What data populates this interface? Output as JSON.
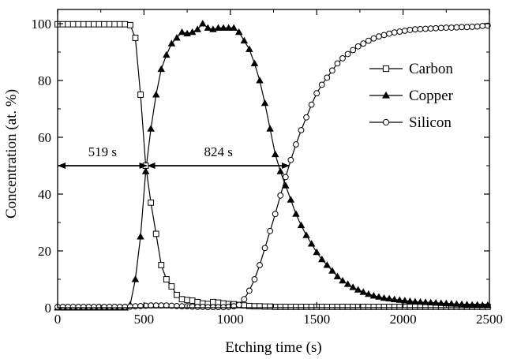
{
  "chart_data": {
    "type": "line",
    "title": "",
    "xlabel": "Etching time (s)",
    "ylabel": "Concentration (at. %)",
    "xlim": [
      0,
      2500
    ],
    "ylim": [
      0,
      105
    ],
    "xticks": [
      0,
      500,
      1000,
      1500,
      2000,
      2500
    ],
    "yticks": [
      0,
      20,
      40,
      60,
      80,
      100
    ],
    "grid": false,
    "legend_position": "right",
    "series": [
      {
        "name": "Carbon",
        "marker": "open-square",
        "color": "#000000",
        "x": [
          0,
          30,
          60,
          90,
          120,
          150,
          180,
          210,
          240,
          270,
          300,
          330,
          360,
          390,
          420,
          450,
          480,
          510,
          540,
          570,
          600,
          630,
          660,
          690,
          720,
          750,
          780,
          810,
          840,
          870,
          900,
          930,
          960,
          990,
          1020,
          1050,
          1080,
          1110,
          1140,
          1170,
          1200,
          1230,
          1260,
          1290,
          1320,
          1350,
          1380,
          1410,
          1440,
          1470,
          1500,
          1530,
          1560,
          1590,
          1620,
          1650,
          1680,
          1710,
          1740,
          1770,
          1800,
          1830,
          1860,
          1890,
          1920,
          1950,
          1980,
          2010,
          2040,
          2070,
          2100,
          2130,
          2160,
          2190,
          2220,
          2250,
          2280,
          2310,
          2340,
          2370,
          2400,
          2430,
          2460,
          2490
        ],
        "y": [
          99.8,
          99.8,
          99.8,
          99.8,
          99.8,
          99.8,
          99.8,
          99.8,
          99.8,
          99.8,
          99.8,
          99.8,
          99.8,
          99.8,
          99.5,
          95,
          75,
          50,
          37,
          26,
          15,
          10,
          7.5,
          4.5,
          3,
          2.7,
          2.5,
          2,
          1.5,
          1.3,
          2,
          1.8,
          1.5,
          1.3,
          1.2,
          1,
          0.8,
          0.6,
          0.5,
          0.5,
          0.4,
          0.4,
          0.3,
          0.3,
          0.3,
          0.3,
          0.3,
          0.3,
          0.3,
          0.3,
          0.3,
          0.3,
          0.3,
          0.3,
          0.3,
          0.3,
          0.3,
          0.3,
          0.3,
          0.3,
          0.3,
          0.3,
          0.3,
          0.3,
          0.3,
          0.3,
          0.3,
          0.3,
          0.3,
          0.3,
          0.3,
          0.3,
          0.3,
          0.3,
          0.3,
          0.3,
          0.3,
          0.3,
          0.3,
          0.3,
          0.3,
          0.3,
          0.3,
          0.3
        ]
      },
      {
        "name": "Copper",
        "marker": "filled-triangle",
        "color": "#000000",
        "x": [
          0,
          30,
          60,
          90,
          120,
          150,
          180,
          210,
          240,
          270,
          300,
          330,
          360,
          390,
          420,
          450,
          480,
          510,
          540,
          570,
          600,
          630,
          660,
          690,
          720,
          750,
          780,
          810,
          840,
          870,
          900,
          930,
          960,
          990,
          1020,
          1050,
          1080,
          1110,
          1140,
          1170,
          1200,
          1230,
          1260,
          1290,
          1320,
          1350,
          1380,
          1410,
          1440,
          1470,
          1500,
          1530,
          1560,
          1590,
          1620,
          1650,
          1680,
          1710,
          1740,
          1770,
          1800,
          1830,
          1860,
          1890,
          1920,
          1950,
          1980,
          2010,
          2040,
          2070,
          2100,
          2130,
          2160,
          2190,
          2220,
          2250,
          2280,
          2310,
          2340,
          2370,
          2400,
          2430,
          2460,
          2490
        ],
        "y": [
          0,
          0,
          0,
          0,
          0,
          0,
          0,
          0,
          0,
          0,
          0,
          0,
          0,
          0,
          1,
          10,
          25,
          48,
          63,
          75,
          84,
          89,
          93,
          95,
          97,
          96.5,
          97,
          98,
          100,
          98.5,
          98,
          98.5,
          98.5,
          98.5,
          98.5,
          97,
          94,
          91,
          86,
          80,
          72,
          63,
          54,
          48,
          43,
          38,
          33,
          29,
          25.5,
          22.5,
          19.5,
          17,
          15,
          13,
          11,
          9.5,
          8.3,
          7.2,
          6.3,
          5.5,
          4.8,
          4.2,
          3.8,
          3.4,
          3.2,
          2.9,
          2.7,
          2.5,
          2.3,
          2.1,
          2,
          1.9,
          1.8,
          1.7,
          1.6,
          1.5,
          1.4,
          1.3,
          1.2,
          1.1,
          1,
          1,
          0.9,
          0.9
        ]
      },
      {
        "name": "Silicon",
        "marker": "open-circle",
        "color": "#000000",
        "x": [
          0,
          30,
          60,
          90,
          120,
          150,
          180,
          210,
          240,
          270,
          300,
          330,
          360,
          390,
          420,
          450,
          480,
          510,
          540,
          570,
          600,
          630,
          660,
          690,
          720,
          750,
          780,
          810,
          840,
          870,
          900,
          930,
          960,
          990,
          1020,
          1050,
          1080,
          1110,
          1140,
          1170,
          1200,
          1230,
          1260,
          1290,
          1320,
          1350,
          1380,
          1410,
          1440,
          1470,
          1500,
          1530,
          1560,
          1590,
          1620,
          1650,
          1680,
          1710,
          1740,
          1770,
          1800,
          1830,
          1860,
          1890,
          1920,
          1950,
          1980,
          2010,
          2040,
          2070,
          2100,
          2130,
          2160,
          2190,
          2220,
          2250,
          2280,
          2310,
          2340,
          2370,
          2400,
          2430,
          2460,
          2490
        ],
        "y": [
          0.3,
          0.3,
          0.3,
          0.3,
          0.3,
          0.3,
          0.3,
          0.3,
          0.3,
          0.3,
          0.3,
          0.3,
          0.3,
          0.3,
          0.4,
          0.5,
          0.6,
          0.7,
          0.8,
          0.8,
          0.8,
          0.8,
          0.7,
          0.6,
          0.5,
          0.5,
          0.4,
          0.3,
          0.3,
          0.2,
          0.2,
          0.2,
          0.2,
          0.3,
          0.5,
          1,
          3,
          6,
          10,
          15,
          21,
          27,
          33,
          39.5,
          46,
          52,
          57.5,
          62.5,
          67,
          71.5,
          75.5,
          78.5,
          81,
          83.5,
          86,
          87.8,
          89.3,
          90.7,
          92,
          93,
          94,
          94.8,
          95.5,
          96,
          96.5,
          96.9,
          97.2,
          97.5,
          97.8,
          98,
          98.1,
          98.2,
          98.3,
          98.4,
          98.5,
          98.6,
          98.6,
          98.7,
          98.8,
          98.8,
          98.9,
          99,
          99.2,
          99.3
        ]
      }
    ],
    "annotations": [
      {
        "label": "519 s",
        "x_start": 0,
        "x_end": 519,
        "y": 50
      },
      {
        "label": "824 s",
        "x_start": 519,
        "x_end": 1343,
        "y": 50
      }
    ]
  }
}
